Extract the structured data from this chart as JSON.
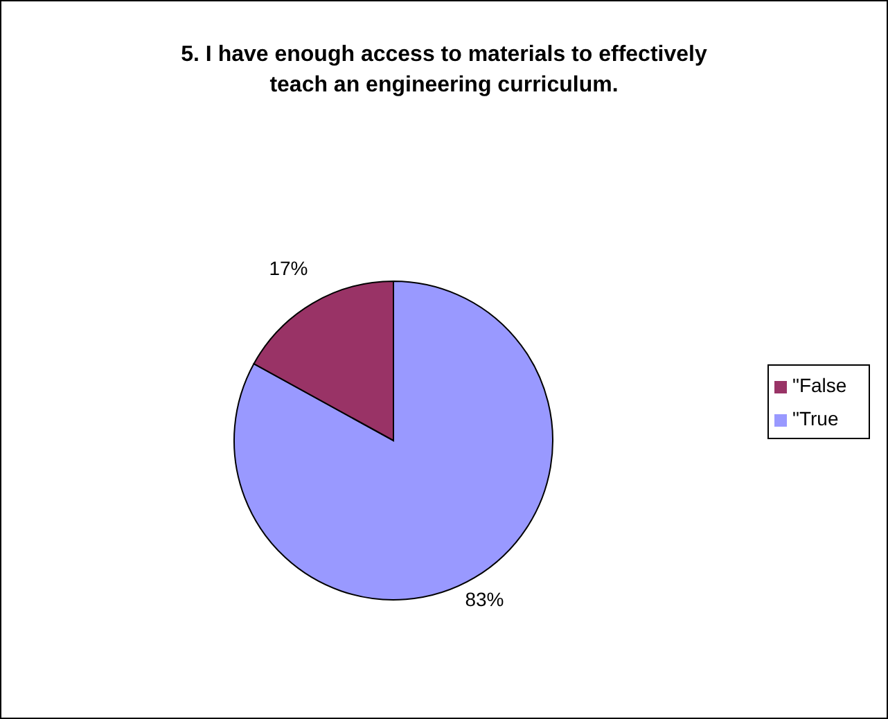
{
  "chart_data": {
    "type": "pie",
    "title": "5. I have enough access to materials to effectively teach an engineering curriculum.",
    "categories": [
      "\"True",
      "\"False"
    ],
    "values": [
      83,
      17
    ],
    "colors": [
      "#9999ff",
      "#993366"
    ],
    "value_labels": [
      "83%",
      "17%"
    ],
    "legend": "right"
  }
}
